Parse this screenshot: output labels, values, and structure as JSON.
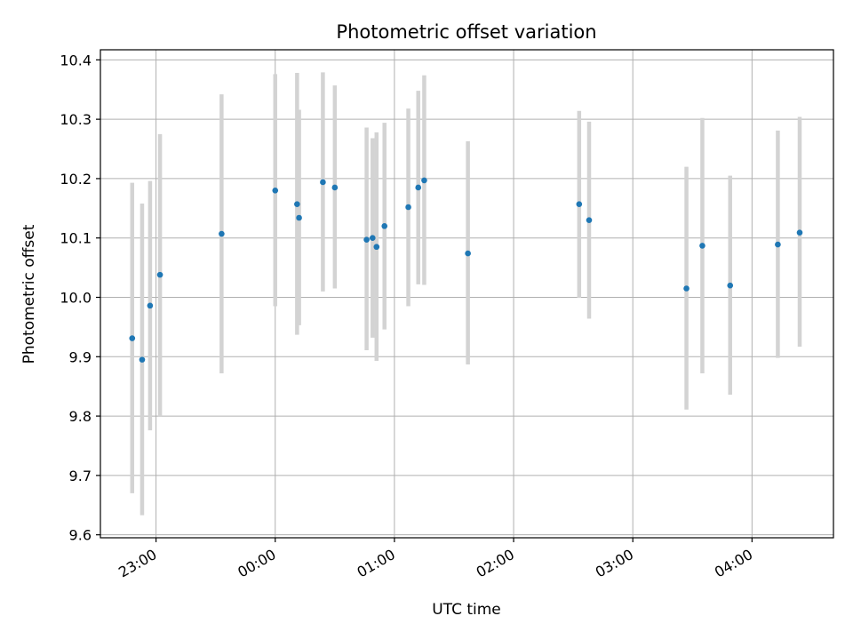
{
  "chart_data": {
    "type": "scatter",
    "title": "Photometric offset variation",
    "xlabel": "UTC time",
    "ylabel": "Photometric offset",
    "x_tick_labels": [
      "23:00",
      "00:00",
      "01:00",
      "02:00",
      "03:00",
      "04:00"
    ],
    "x_tick_values": [
      "23:00",
      "24:00",
      "25:00",
      "26:00",
      "27:00",
      "28:00"
    ],
    "x_range": [
      "22:32",
      "28:41"
    ],
    "y_tick_labels": [
      "9.6",
      "9.7",
      "9.8",
      "9.9",
      "10.0",
      "10.1",
      "10.2",
      "10.3",
      "10.4"
    ],
    "ylim": [
      9.595,
      10.417
    ],
    "grid": true,
    "colors": {
      "points": "#1f77b4",
      "errorbars": "#d3d3d3",
      "grid": "#b0b0b0"
    },
    "series": [
      {
        "x": [
          "22:48",
          "22:53",
          "22:57",
          "23:02",
          "23:33",
          "24:00",
          "24:11",
          "24:12",
          "24:24",
          "24:30",
          "24:46",
          "24:49",
          "24:51",
          "24:55",
          "25:07",
          "25:12",
          "25:15",
          "25:37",
          "26:33",
          "26:38",
          "27:27",
          "27:35",
          "27:49",
          "28:13",
          "28:24"
        ],
        "y": [
          9.931,
          9.895,
          9.986,
          10.038,
          10.107,
          10.18,
          10.157,
          10.134,
          10.194,
          10.185,
          10.097,
          10.1,
          10.085,
          10.12,
          10.152,
          10.185,
          10.197,
          10.074,
          10.157,
          10.13,
          10.015,
          10.087,
          10.02,
          10.089,
          10.109
        ],
        "y_low": [
          9.67,
          9.633,
          9.776,
          9.8,
          9.872,
          9.985,
          9.937,
          9.953,
          10.01,
          10.015,
          9.911,
          9.932,
          9.893,
          9.946,
          9.985,
          10.022,
          10.021,
          9.887,
          9.999,
          9.964,
          9.811,
          9.872,
          9.836,
          9.898,
          9.917
        ],
        "y_high": [
          10.193,
          10.158,
          10.196,
          10.275,
          10.342,
          10.376,
          10.378,
          10.316,
          10.379,
          10.357,
          10.286,
          10.268,
          10.278,
          10.294,
          10.318,
          10.348,
          10.374,
          10.263,
          10.314,
          10.296,
          10.22,
          10.302,
          10.205,
          10.281,
          10.304
        ]
      }
    ]
  }
}
